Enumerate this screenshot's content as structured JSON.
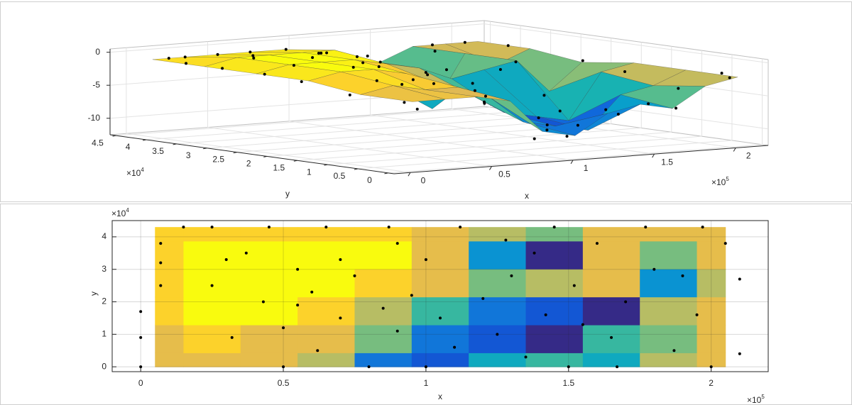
{
  "chart_data": [
    {
      "type": "surface3d",
      "xlabel": "x",
      "ylabel": "y",
      "x_multiplier": "×10",
      "x_exponent": "5",
      "y_multiplier": "×10",
      "y_exponent": "4",
      "xlim": [
        -0.1,
        2.2
      ],
      "ylim": [
        -0.1,
        4.6
      ],
      "zlim": [
        -12.5,
        0.5
      ],
      "xticks": [
        0,
        0.5,
        1,
        1.5,
        2
      ],
      "yticks": [
        0,
        0.5,
        1,
        1.5,
        2,
        2.5,
        3,
        3.5,
        4,
        4.5
      ],
      "zticks": [
        -10,
        -5,
        0
      ],
      "grid": true,
      "point_color": "#000000",
      "edge_color": "#333333",
      "grid_x": [
        0.05,
        0.25,
        0.45,
        0.65,
        0.85,
        1.05,
        1.25,
        1.45,
        1.65,
        1.85,
        2.05
      ],
      "grid_y": [
        0,
        0.86,
        1.72,
        2.58,
        3.44,
        4.3
      ],
      "z": [
        [
          -2,
          -2,
          -2,
          -3,
          -8,
          -9,
          -6,
          -5,
          -6,
          -3,
          -2
        ],
        [
          -2,
          -1,
          -2,
          -2,
          -4,
          -8,
          -9,
          -10,
          -5,
          -4,
          -2
        ],
        [
          -1,
          0,
          0,
          -1,
          -3,
          -5,
          -8,
          -9,
          -10,
          -3,
          -2
        ],
        [
          -1,
          0,
          0,
          0,
          -1,
          -2,
          -4,
          -3,
          -2,
          -7,
          -3
        ],
        [
          -1,
          0,
          0,
          0,
          0,
          -2,
          -7,
          -10,
          -2,
          -4,
          -2
        ],
        [
          -1,
          -1,
          -1,
          -1,
          -1,
          -2,
          -3,
          -4,
          -2,
          -2,
          -2
        ]
      ],
      "points": {
        "x": [
          0,
          0,
          0,
          0.07,
          0.07,
          0.07,
          0.15,
          0.25,
          0.25,
          0.32,
          0.37,
          0.43,
          0.45,
          0.5,
          0.5,
          0.55,
          0.6,
          0.62,
          0.65,
          0.7,
          0.7,
          0.75,
          0.8,
          0.85,
          0.87,
          0.9,
          0.95,
          1.0,
          1.0,
          1.05,
          1.1,
          1.12,
          1.2,
          1.25,
          1.28,
          1.35,
          1.38,
          1.42,
          1.45,
          1.5,
          1.52,
          1.55,
          1.6,
          1.65,
          1.67,
          1.7,
          1.77,
          1.8,
          1.87,
          1.9,
          1.95,
          2.0,
          2.05,
          2.1,
          2.1,
          1.97,
          0.9,
          0.55,
          0.3,
          1.3
        ],
        "y": [
          0,
          0.9,
          1.7,
          2.5,
          3.2,
          3.8,
          4.3,
          4.3,
          2.5,
          0.9,
          3.5,
          2.0,
          4.3,
          0,
          1.2,
          3.0,
          2.3,
          0.5,
          4.3,
          1.5,
          3.3,
          2.8,
          0,
          1.8,
          4.3,
          1.1,
          2.2,
          0,
          3.3,
          1.5,
          0.6,
          4.3,
          2.1,
          1.0,
          3.9,
          0.3,
          3.5,
          1.6,
          4.3,
          0,
          2.5,
          1.3,
          3.8,
          0.9,
          0,
          2.0,
          4.3,
          3.0,
          0.5,
          2.8,
          1.6,
          0,
          3.8,
          2.7,
          0.4,
          4.3,
          3.8,
          1.9,
          3.3,
          2.8
        ],
        "z": [
          -2,
          -2,
          -1,
          -1,
          -1,
          -1,
          -1,
          -1,
          0,
          -1,
          0,
          0,
          -1,
          -2,
          -1,
          0,
          0,
          -2,
          -1,
          -1,
          0,
          0,
          -9,
          -3,
          -1,
          -5,
          -2,
          -9,
          -1,
          -6,
          -9,
          -2,
          -4,
          -9,
          -6,
          -6,
          -10,
          -9,
          -4,
          -5,
          -3,
          -10,
          -2,
          -8,
          -6,
          -9,
          -2,
          -3,
          -4,
          -8,
          -3,
          -2,
          -2,
          -3,
          -2,
          -2,
          -1,
          0,
          0,
          -3
        ]
      }
    },
    {
      "type": "contour",
      "xlabel": "x",
      "ylabel": "y",
      "x_multiplier": "×10",
      "x_exponent": "5",
      "y_multiplier": "×10",
      "y_exponent": "4",
      "xlim": [
        -0.1,
        2.2
      ],
      "ylim": [
        -0.15,
        4.5
      ],
      "xticks": [
        0,
        0.5,
        1,
        1.5,
        2
      ],
      "yticks": [
        0,
        1,
        2,
        3,
        4
      ],
      "grid": true,
      "point_color": "#000000",
      "grid_x": [
        0.05,
        0.25,
        0.45,
        0.65,
        0.85,
        1.05,
        1.25,
        1.45,
        1.65,
        1.85,
        2.05
      ],
      "grid_y": [
        0,
        0.86,
        1.72,
        2.58,
        3.44,
        4.3
      ],
      "z": [
        [
          -2,
          -2,
          -2,
          -3,
          -8,
          -9,
          -6,
          -5,
          -6,
          -3,
          -2
        ],
        [
          -2,
          -1,
          -2,
          -2,
          -4,
          -8,
          -9,
          -10,
          -5,
          -4,
          -2
        ],
        [
          -1,
          0,
          0,
          -1,
          -3,
          -5,
          -8,
          -9,
          -10,
          -3,
          -2
        ],
        [
          -1,
          0,
          0,
          0,
          -1,
          -2,
          -4,
          -3,
          -2,
          -7,
          -3
        ],
        [
          -1,
          0,
          0,
          0,
          0,
          -2,
          -7,
          -10,
          -2,
          -4,
          -2
        ],
        [
          -1,
          -1,
          -1,
          -1,
          -1,
          -2,
          -3,
          -4,
          -2,
          -2,
          -2
        ]
      ],
      "points": {
        "x": [
          0,
          0,
          0,
          0.07,
          0.07,
          0.07,
          0.15,
          0.25,
          0.25,
          0.32,
          0.37,
          0.43,
          0.45,
          0.5,
          0.5,
          0.55,
          0.6,
          0.62,
          0.65,
          0.7,
          0.7,
          0.75,
          0.8,
          0.85,
          0.87,
          0.9,
          0.95,
          1.0,
          1.0,
          1.05,
          1.1,
          1.12,
          1.2,
          1.25,
          1.28,
          1.35,
          1.38,
          1.42,
          1.45,
          1.5,
          1.52,
          1.55,
          1.6,
          1.65,
          1.67,
          1.7,
          1.77,
          1.8,
          1.87,
          1.9,
          1.95,
          2.0,
          2.05,
          2.1,
          2.1,
          1.97,
          0.9,
          0.55,
          0.3,
          1.3
        ],
        "y": [
          0,
          0.9,
          1.7,
          2.5,
          3.2,
          3.8,
          4.3,
          4.3,
          2.5,
          0.9,
          3.5,
          2.0,
          4.3,
          0,
          1.2,
          3.0,
          2.3,
          0.5,
          4.3,
          1.5,
          3.3,
          2.8,
          0,
          1.8,
          4.3,
          1.1,
          2.2,
          0,
          3.3,
          1.5,
          0.6,
          4.3,
          2.1,
          1.0,
          3.9,
          0.3,
          3.5,
          1.6,
          4.3,
          0,
          2.5,
          1.3,
          3.8,
          0.9,
          0,
          2.0,
          4.3,
          3.0,
          0.5,
          2.8,
          1.6,
          0,
          3.8,
          2.7,
          0.4,
          4.3,
          3.8,
          1.9,
          3.3,
          2.8
        ]
      }
    }
  ]
}
